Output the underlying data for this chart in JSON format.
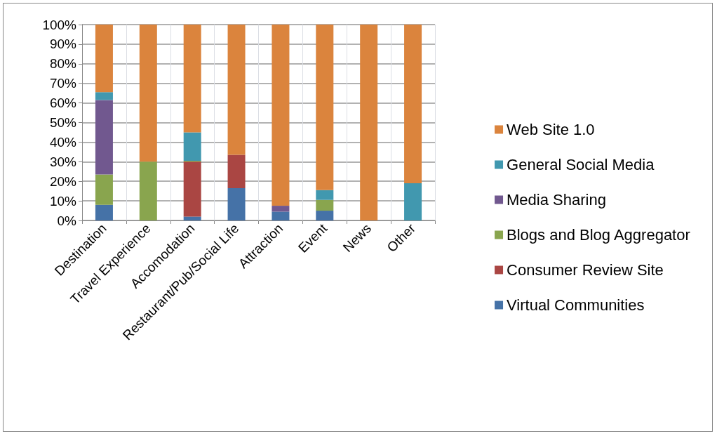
{
  "chart_data": {
    "type": "bar",
    "stacked": true,
    "categories": [
      "Destination",
      "Travel Experience",
      "Accomodation",
      "Restaurant/Pub/Social Life",
      "Attraction",
      "Event",
      "News",
      "Other"
    ],
    "series": [
      {
        "name": "Virtual Communities",
        "color": "#4572a7",
        "values": [
          8,
          0,
          2,
          16.5,
          4.5,
          5,
          0,
          0
        ]
      },
      {
        "name": "Consumer Review Site",
        "color": "#aa4643",
        "values": [
          0,
          0,
          28,
          17,
          0,
          0,
          0,
          0
        ]
      },
      {
        "name": "Blogs and Blog Aggregator",
        "color": "#89a54e",
        "values": [
          15.5,
          30,
          0.5,
          0,
          0,
          5.5,
          0,
          0
        ]
      },
      {
        "name": "Media Sharing",
        "color": "#71588f",
        "values": [
          38,
          0,
          0,
          0,
          3,
          0,
          0,
          0
        ]
      },
      {
        "name": "General Social Media",
        "color": "#4198af",
        "values": [
          4,
          0,
          14.5,
          0,
          0,
          5,
          0,
          19
        ]
      },
      {
        "name": "Web Site 1.0",
        "color": "#db843d",
        "values": [
          34.5,
          70,
          55,
          66.5,
          92.5,
          84.5,
          100,
          81
        ]
      }
    ],
    "ylim": [
      0,
      100
    ],
    "yticks": [
      {
        "value": 0,
        "label": "0%"
      },
      {
        "value": 10,
        "label": "10%"
      },
      {
        "value": 20,
        "label": "20%"
      },
      {
        "value": 30,
        "label": "30%"
      },
      {
        "value": 40,
        "label": "40%"
      },
      {
        "value": 50,
        "label": "50%"
      },
      {
        "value": 60,
        "label": "60%"
      },
      {
        "value": 70,
        "label": "70%"
      },
      {
        "value": 80,
        "label": "80%"
      },
      {
        "value": 90,
        "label": "90%"
      },
      {
        "value": 100,
        "label": "100%"
      }
    ],
    "grid": "y",
    "legend": "right"
  }
}
